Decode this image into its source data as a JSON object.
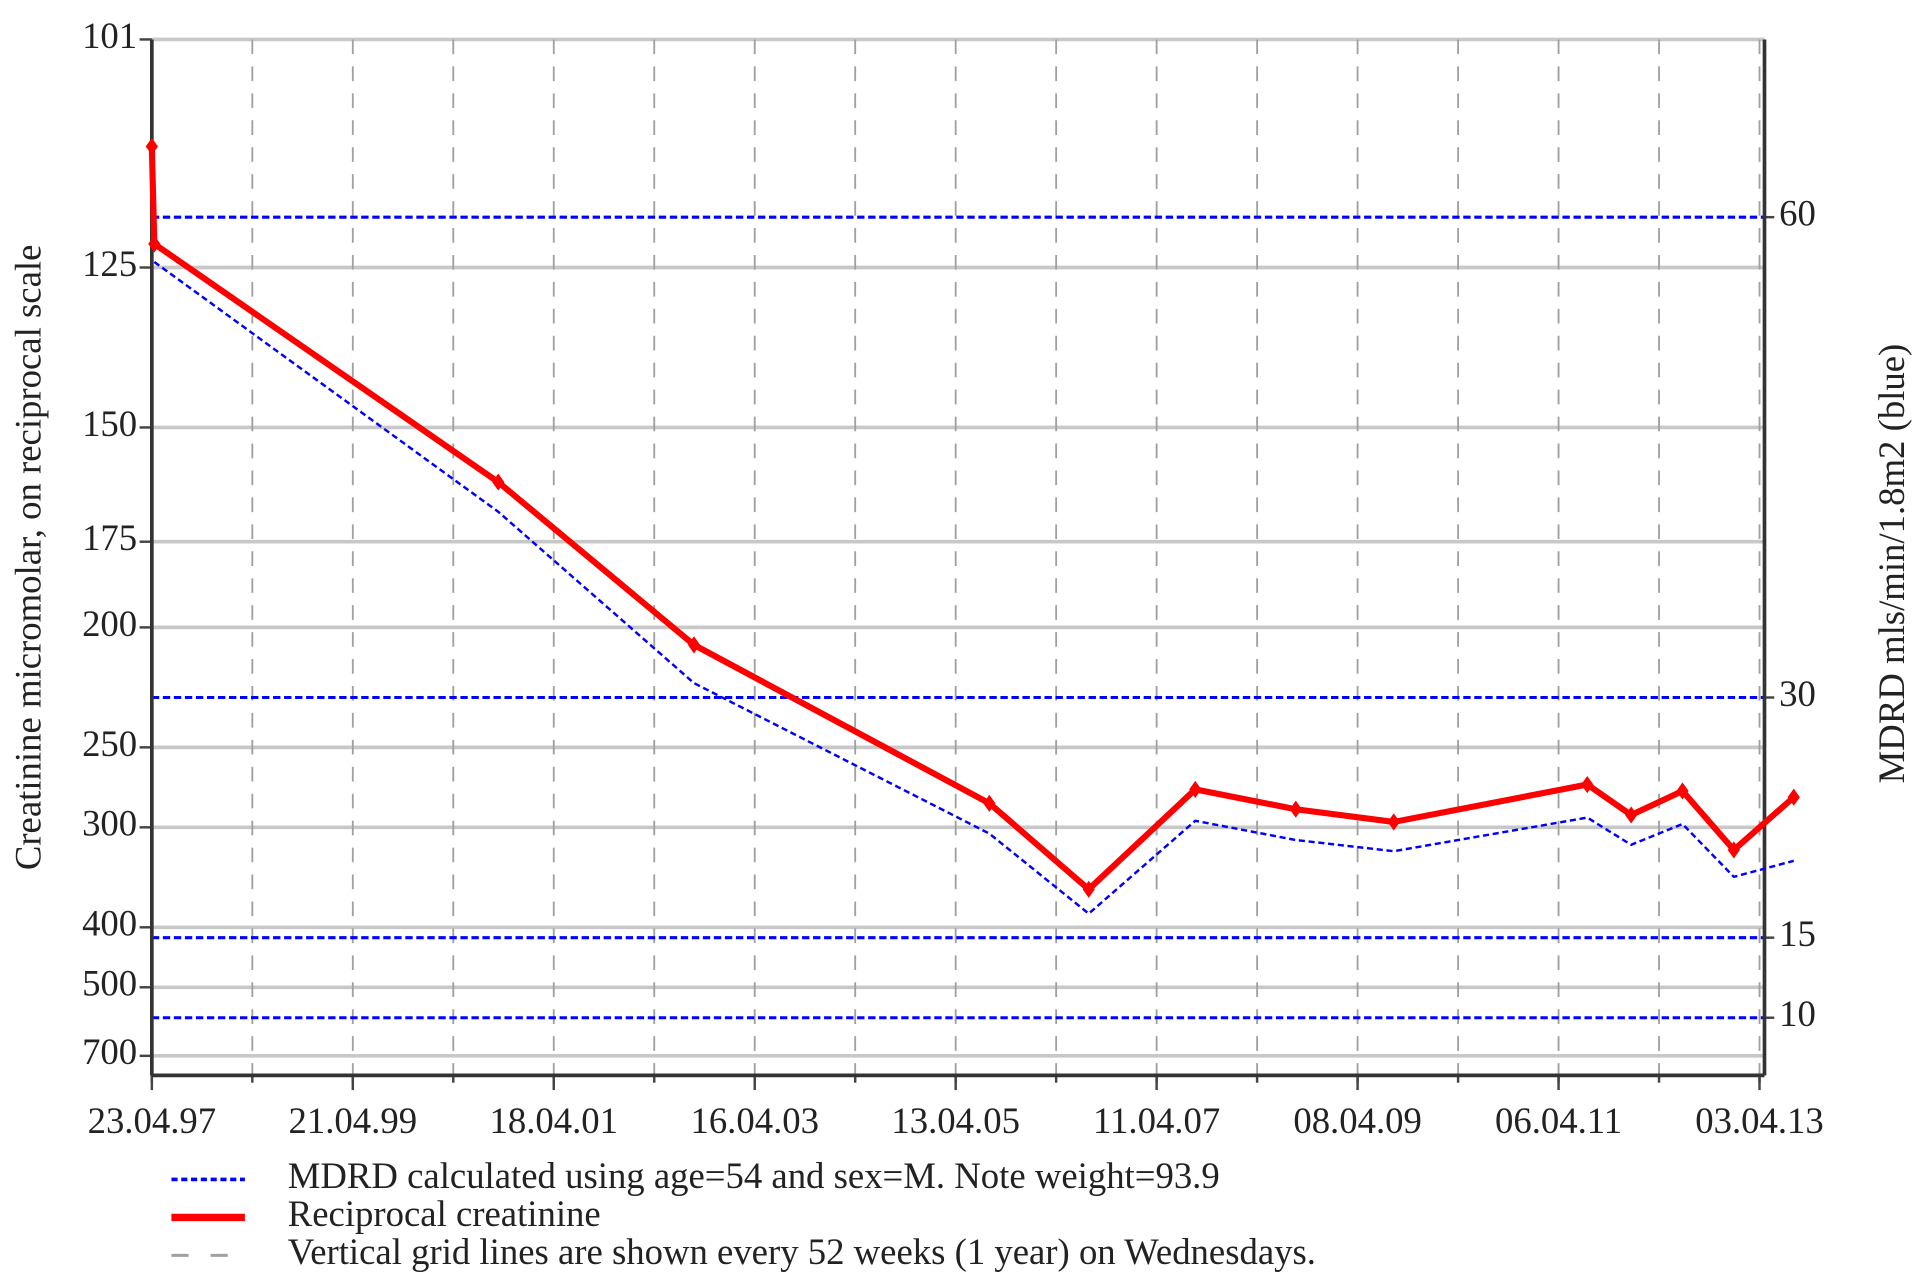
{
  "chart_data": {
    "type": "line",
    "ylabel": "Creatinine micromolar, on reciprocal scale",
    "y2label": "MDRD mls/min/1.8m2 (blue)",
    "yscale": "reciprocal",
    "ylim": [
      101,
      790
    ],
    "yticks": [
      101,
      125,
      150,
      175,
      200,
      250,
      300,
      400,
      500,
      700
    ],
    "y2lim": [
      6.4,
      71.1
    ],
    "y2ticks": [
      60,
      30,
      15,
      10
    ],
    "xlim": [
      "1997-04-23",
      "2013-04-21"
    ],
    "xticks": [
      {
        "value": "1997-04-23",
        "label": "23.04.97"
      },
      {
        "value": "1999-04-21",
        "label": "21.04.99"
      },
      {
        "value": "2001-04-18",
        "label": "18.04.01"
      },
      {
        "value": "2003-04-16",
        "label": "16.04.03"
      },
      {
        "value": "2005-04-13",
        "label": "13.04.05"
      },
      {
        "value": "2007-04-11",
        "label": "11.04.07"
      },
      {
        "value": "2009-04-08",
        "label": "08.04.09"
      },
      {
        "value": "2011-04-06",
        "label": "06.04.11"
      },
      {
        "value": "2013-04-03",
        "label": "03.04.13"
      }
    ],
    "xgrid": [
      "1997-04-23",
      "1998-04-22",
      "1999-04-21",
      "2000-04-19",
      "2001-04-18",
      "2002-04-17",
      "2003-04-16",
      "2004-04-14",
      "2005-04-13",
      "2006-04-12",
      "2007-04-11",
      "2008-04-09",
      "2009-04-08",
      "2010-04-07",
      "2011-04-06",
      "2012-04-04",
      "2013-04-03"
    ],
    "grid": true,
    "grid_color": "#c8c8c8",
    "xgrid_color": "#a0a0a0",
    "y2grid_color": "#0000ff",
    "x": [
      "1997-04-23",
      "1997-05-02",
      "2000-09-29",
      "2002-09-08",
      "2005-08-13",
      "2006-08-08",
      "2007-08-29",
      "2008-08-27",
      "2009-08-17",
      "2011-07-19",
      "2011-12-25",
      "2012-06-28",
      "2012-12-31",
      "2013-08-05"
    ],
    "series": [
      {
        "name": "MDRD calculated using age=54 and sex=M. Note weight=93.9",
        "color": "#0000ff",
        "axis": "y2",
        "linestyle": "dashed",
        "values": [
          null,
          57.2,
          41.6,
          30.9,
          21.5,
          16.5,
          22.3,
          21.1,
          20.4,
          22.5,
          20.8,
          22.1,
          18.8,
          19.8
        ]
      },
      {
        "name": "Reciprocal creatinine",
        "color": "#ff0000",
        "axis": "y",
        "linestyle": "solid",
        "markers": true,
        "values": [
          111,
          122,
          161,
          206,
          283,
          355,
          274,
          287,
          296,
          271,
          291,
          275,
          318,
          279
        ]
      }
    ],
    "legend_note": "Vertical grid lines are shown every 52 weeks (1 year) on Wednesdays."
  }
}
